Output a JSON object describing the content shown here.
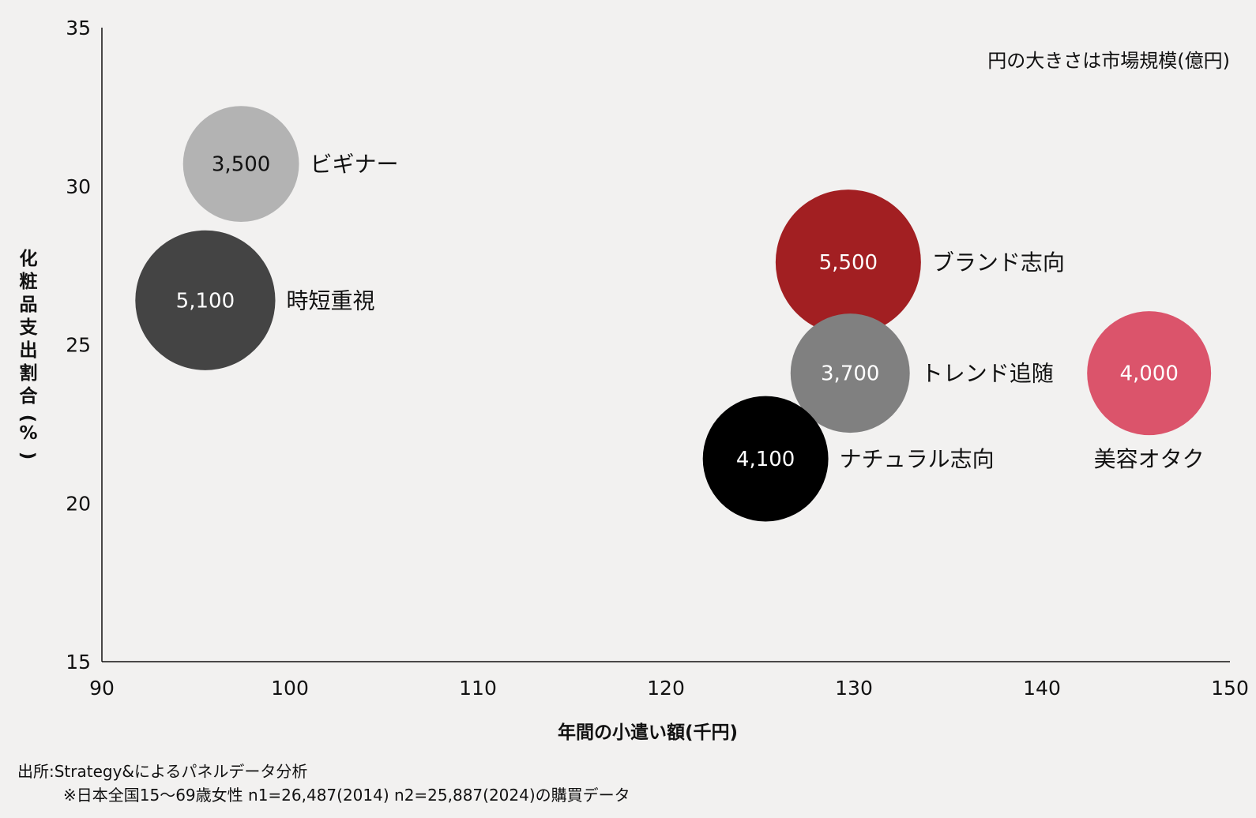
{
  "chart_data": {
    "type": "scatter",
    "xlabel": "年間の小遣い額(千円)",
    "ylabel": "化粧品支出割合(%)",
    "xlim": [
      90,
      150
    ],
    "ylim": [
      15,
      35
    ],
    "xticks": [
      "90",
      "100",
      "110",
      "120",
      "130",
      "140",
      "150"
    ],
    "yticks": [
      "15",
      "20",
      "25",
      "30",
      "35"
    ],
    "size_note": "円の大きさは市場規模(億円)",
    "grid": false,
    "points": [
      {
        "name": "ビギナー",
        "x": 97.4,
        "y": 30.7,
        "size": 3500,
        "size_label": "3,500",
        "color": "#b3b3b3",
        "text_color": "#111111",
        "label_pos": "right"
      },
      {
        "name": "時短重視",
        "x": 95.5,
        "y": 26.4,
        "size": 5100,
        "size_label": "5,100",
        "color": "#444444",
        "text_color": "#ffffff",
        "label_pos": "right"
      },
      {
        "name": "ブランド志向",
        "x": 129.7,
        "y": 27.6,
        "size": 5500,
        "size_label": "5,500",
        "color": "#a21f22",
        "text_color": "#ffffff",
        "label_pos": "right"
      },
      {
        "name": "トレンド追随",
        "x": 129.8,
        "y": 24.1,
        "size": 3700,
        "size_label": "3,700",
        "color": "#808080",
        "text_color": "#ffffff",
        "label_pos": "right"
      },
      {
        "name": "ナチュラル志向",
        "x": 125.3,
        "y": 21.4,
        "size": 4100,
        "size_label": "4,100",
        "color": "#000000",
        "text_color": "#ffffff",
        "label_pos": "right"
      },
      {
        "name": "美容オタク",
        "x": 145.7,
        "y": 24.1,
        "size": 4000,
        "size_label": "4,000",
        "color": "#db546b",
        "text_color": "#ffffff",
        "label_pos": "below"
      }
    ]
  },
  "source": {
    "line1": "出所:Strategy&によるパネルデータ分析",
    "line2": "※日本全国15〜69歳女性 n1=26,487(2014) n2=25,887(2024)の購買データ"
  }
}
